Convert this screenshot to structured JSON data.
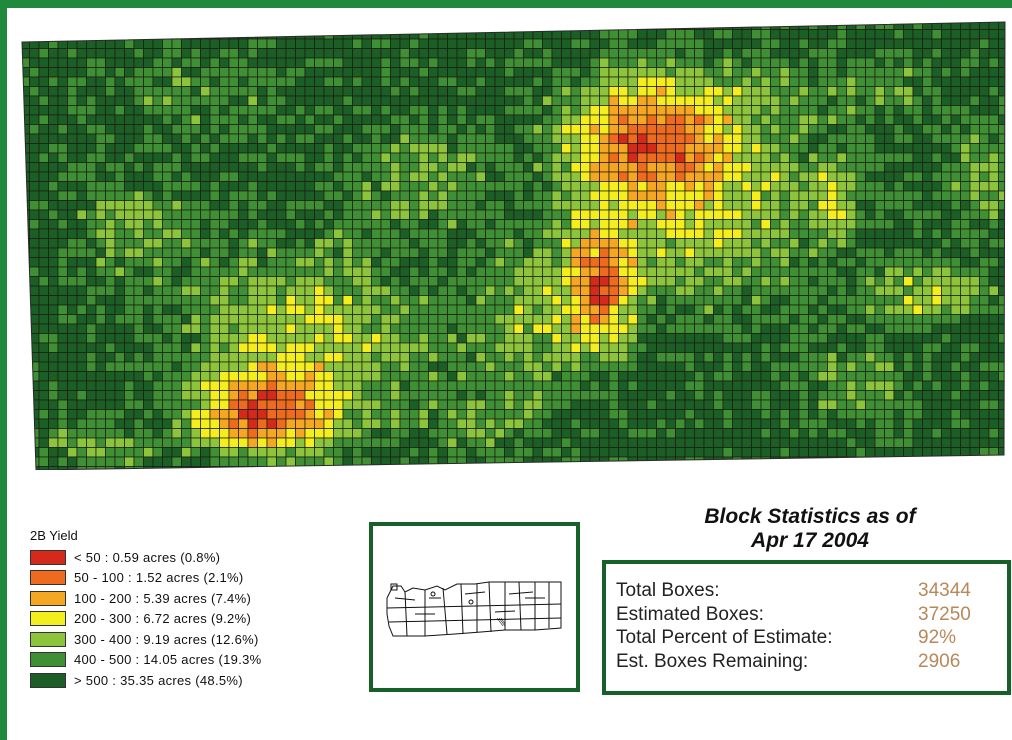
{
  "legend": {
    "title": "2B Yield",
    "items": [
      {
        "label": "< 50 : 0.59 acres (0.8%)",
        "color": "#d42a1c"
      },
      {
        "label": "50 - 100 : 1.52 acres (2.1%)",
        "color": "#ee6a1e"
      },
      {
        "label": "100 - 200 : 5.39 acres (7.4%)",
        "color": "#f5a623"
      },
      {
        "label": "200 - 300 : 6.72 acres (9.2%)",
        "color": "#f4ee1e"
      },
      {
        "label": "300 - 400 : 9.19 acres (12.6%)",
        "color": "#8cc43c"
      },
      {
        "label": "400 - 500 : 14.05 acres (19.3%",
        "color": "#3f8f35"
      },
      {
        "label": "> 500 : 35.35 acres (48.5%)",
        "color": "#1c5f26"
      }
    ]
  },
  "stats": {
    "title_line1": "Block Statistics as of",
    "title_line2": "Apr 17 2004",
    "rows": [
      {
        "label": "Total Boxes:",
        "value": "34344"
      },
      {
        "label": "Estimated Boxes:",
        "value": "37250"
      },
      {
        "label": "Total Percent of Estimate:",
        "value": "92%"
      },
      {
        "label": "Est. Boxes Remaining:",
        "value": "2906"
      }
    ]
  },
  "colors": {
    "frame": "#1f8a3b",
    "box_border": "#17602a",
    "stat_value": "#b8875a"
  }
}
